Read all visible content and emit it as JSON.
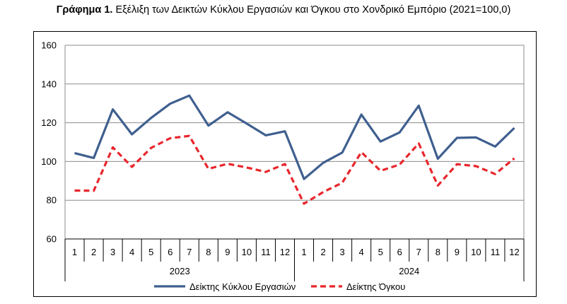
{
  "caption": {
    "label": "Γράφημα 1.",
    "text": " Εξέλιξη των Δεικτών Κύκλου Εργασιών και Όγκου στο Χονδρικό Εμπόριο (2021=100,0)"
  },
  "colors": {
    "turnover": "#3f5f8f",
    "volume": "#e8262c",
    "grid": "#8c8c8c",
    "plot_bg": "#ffffff"
  },
  "chart_data": {
    "type": "line",
    "title": "Εξέλιξη των Δεικτών Κύκλου Εργασιών και Όγκου στο Χονδρικό Εμπόριο (2021=100,0)",
    "categories": [
      "1",
      "2",
      "3",
      "4",
      "5",
      "6",
      "7",
      "8",
      "9",
      "10",
      "11",
      "12",
      "1",
      "2",
      "3",
      "4",
      "5",
      "6",
      "7",
      "8",
      "9",
      "10",
      "11",
      "12"
    ],
    "groups": [
      {
        "label": "2023",
        "count": 12
      },
      {
        "label": "2024",
        "count": 12
      }
    ],
    "ylim": [
      60,
      160
    ],
    "yticks": [
      60,
      80,
      100,
      120,
      140,
      160
    ],
    "grid": true,
    "legend_position": "bottom",
    "series": [
      {
        "name": "Δείκτης Κύκλου Εργασιών",
        "style": "solid",
        "color": "#3f5f8f",
        "values": [
          104.3,
          101.8,
          126.9,
          114.0,
          122.5,
          129.8,
          134.0,
          118.5,
          125.4,
          119.6,
          113.5,
          115.6,
          91.0,
          99.3,
          104.6,
          124.2,
          110.3,
          115.0,
          128.8,
          101.4,
          112.2,
          112.4,
          107.7,
          117.3
        ]
      },
      {
        "name": "Δείκτης Όγκου",
        "style": "dashed",
        "color": "#e8262c",
        "values": [
          85.0,
          84.9,
          107.3,
          97.2,
          107.0,
          112.0,
          113.2,
          96.2,
          98.8,
          96.9,
          94.6,
          98.7,
          78.2,
          84.2,
          89.0,
          104.8,
          95.2,
          98.4,
          109.3,
          87.6,
          98.6,
          97.6,
          93.5,
          101.6
        ]
      }
    ]
  }
}
